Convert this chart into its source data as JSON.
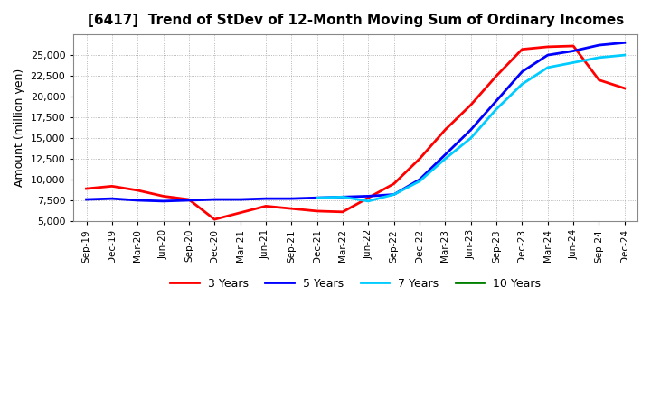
{
  "title": "[6417]  Trend of StDev of 12-Month Moving Sum of Ordinary Incomes",
  "ylabel": "Amount (million yen)",
  "background_color": "#ffffff",
  "grid_color": "#aaaaaa",
  "ylim": [
    5000,
    27500
  ],
  "yticks": [
    5000,
    7500,
    10000,
    12500,
    15000,
    17500,
    20000,
    22500,
    25000
  ],
  "xtick_labels": [
    "Sep-19",
    "Dec-19",
    "Mar-20",
    "Jun-20",
    "Sep-20",
    "Dec-20",
    "Mar-21",
    "Jun-21",
    "Sep-21",
    "Dec-21",
    "Mar-22",
    "Jun-22",
    "Sep-22",
    "Dec-22",
    "Mar-23",
    "Jun-23",
    "Sep-23",
    "Dec-23",
    "Mar-24",
    "Jun-24",
    "Sep-24",
    "Dec-24"
  ],
  "series": {
    "3 Years": {
      "color": "#ff0000",
      "x_indices": [
        0,
        1,
        2,
        3,
        4,
        5,
        6,
        7,
        8,
        9,
        10,
        11,
        12,
        13,
        14,
        15,
        16,
        17,
        18,
        19,
        20,
        21
      ],
      "values": [
        8900,
        9200,
        8700,
        8000,
        7600,
        5200,
        6000,
        6800,
        6500,
        6200,
        6100,
        7800,
        9500,
        12500,
        16000,
        19000,
        22500,
        25700,
        26000,
        26100,
        22000,
        21000
      ]
    },
    "5 Years": {
      "color": "#0000ff",
      "x_indices": [
        0,
        1,
        2,
        3,
        4,
        5,
        6,
        7,
        8,
        9,
        10,
        11,
        12,
        13,
        14,
        15,
        16,
        17,
        18,
        19,
        20,
        21
      ],
      "values": [
        7600,
        7700,
        7500,
        7400,
        7500,
        7600,
        7600,
        7700,
        7700,
        7800,
        7900,
        8000,
        8200,
        10000,
        13000,
        16000,
        19500,
        23000,
        25000,
        25500,
        26200,
        26500
      ]
    },
    "7 Years": {
      "color": "#00ccff",
      "x_indices": [
        9,
        10,
        11,
        12,
        13,
        14,
        15,
        16,
        17,
        18,
        19,
        20,
        21
      ],
      "values": [
        7800,
        7900,
        7400,
        8200,
        9800,
        12500,
        15000,
        18500,
        21500,
        23500,
        24100,
        24700,
        25000
      ]
    },
    "10 Years": {
      "color": "#008000",
      "x_indices": [],
      "values": []
    }
  },
  "legend_labels": [
    "3 Years",
    "5 Years",
    "7 Years",
    "10 Years"
  ],
  "legend_colors": [
    "#ff0000",
    "#0000ff",
    "#00ccff",
    "#008000"
  ]
}
